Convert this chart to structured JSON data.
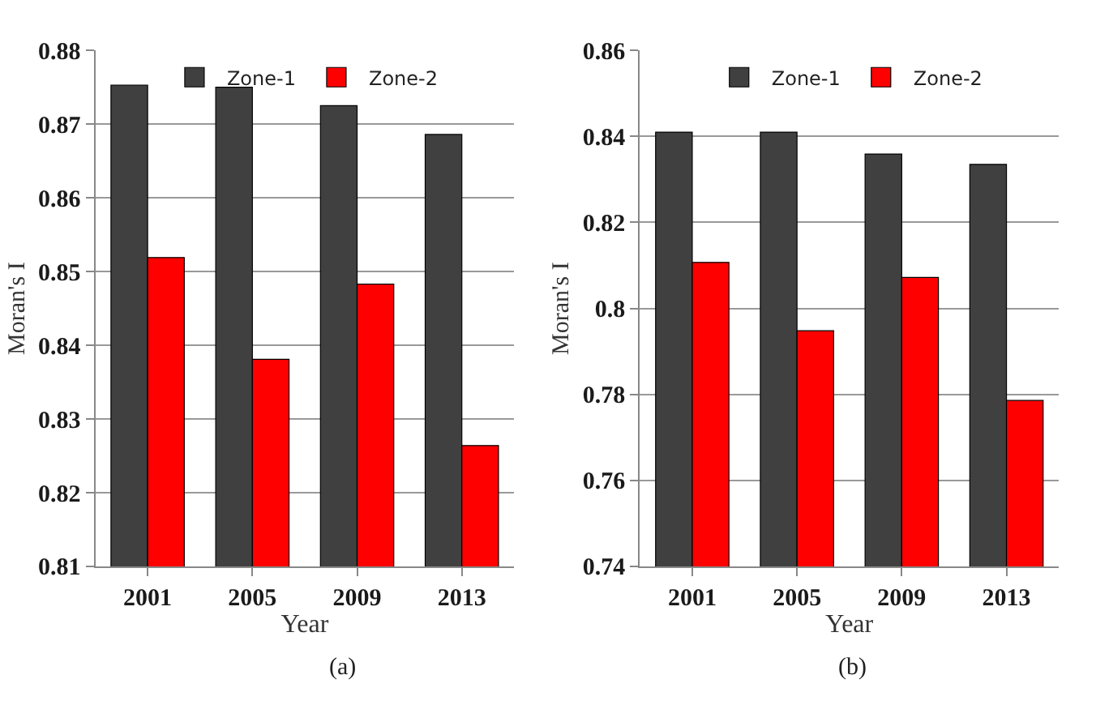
{
  "chart_data": [
    {
      "type": "bar",
      "categories": [
        "2001",
        "2005",
        "2009",
        "2013"
      ],
      "xlabel": "Year",
      "ylabel": "Moran's I",
      "annotations": [
        "(a)"
      ],
      "series": [
        {
          "name": "Zone-1",
          "color": "#404040",
          "values": [
            0.8753,
            0.875,
            0.8725,
            0.8686
          ]
        },
        {
          "name": "Zone-2",
          "color": "#ff0000",
          "values": [
            0.8519,
            0.8381,
            0.8483,
            0.8264
          ]
        }
      ],
      "ylim": [
        0.81,
        0.88
      ],
      "yticks": [
        0.81,
        0.82,
        0.83,
        0.84,
        0.85,
        0.86,
        0.87,
        0.88
      ],
      "grid": "y",
      "legend": "top"
    },
    {
      "type": "bar",
      "categories": [
        "2001",
        "2005",
        "2009",
        "2013"
      ],
      "xlabel": "Year",
      "ylabel": "Moran's I",
      "annotations": [
        "(b)"
      ],
      "series": [
        {
          "name": "Zone-1",
          "color": "#404040",
          "values": [
            0.841,
            0.841,
            0.8359,
            0.8335
          ]
        },
        {
          "name": "Zone-2",
          "color": "#ff0000",
          "values": [
            0.8107,
            0.7948,
            0.8072,
            0.7786
          ]
        }
      ],
      "ylim": [
        0.74,
        0.86
      ],
      "yticks": [
        0.74,
        0.76,
        0.78,
        0.8,
        0.82,
        0.84,
        0.86
      ],
      "grid": "y",
      "legend": "top"
    }
  ]
}
